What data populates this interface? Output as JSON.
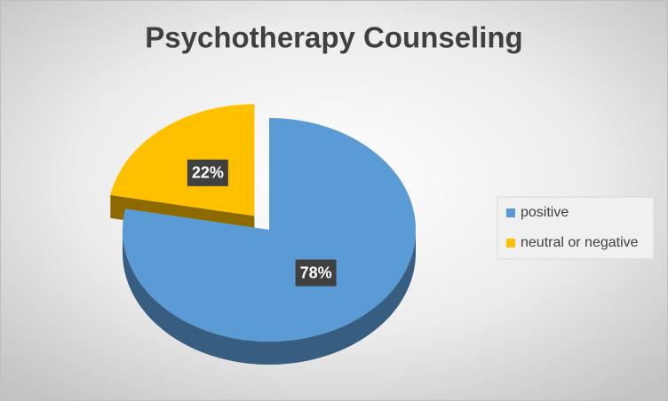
{
  "chart_data": {
    "type": "pie",
    "title": "Psychotherapy Counseling",
    "categories": [
      "positive",
      "neutral or negative"
    ],
    "values": [
      78,
      22
    ],
    "value_labels": [
      "78%",
      "22%"
    ],
    "colors": [
      "#5b9bd5",
      "#ffc000"
    ],
    "legend": "right"
  }
}
